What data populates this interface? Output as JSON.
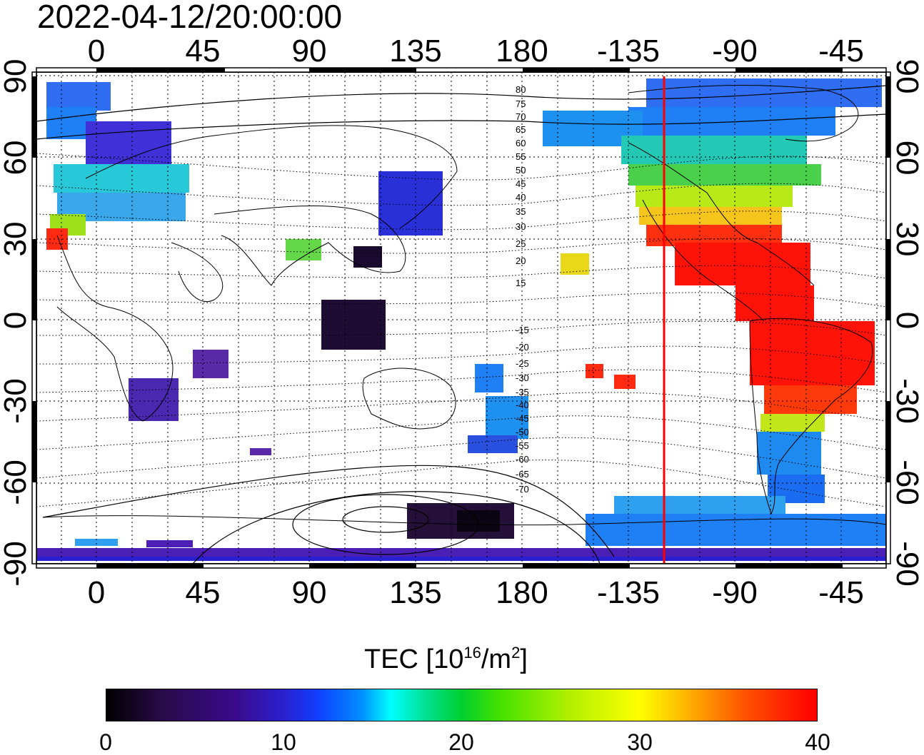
{
  "title": "2022-04-12/20:00:00",
  "map": {
    "lon_ticks": [
      "0",
      "45",
      "90",
      "135",
      "180",
      "-135",
      "-90",
      "-45"
    ],
    "lat_ticks": [
      "90",
      "60",
      "30",
      "0",
      "-30",
      "-60",
      "-90"
    ],
    "contour_labels_north": [
      "80",
      "75",
      "70",
      "65",
      "60",
      "55",
      "50",
      "45",
      "40",
      "35",
      "30",
      "25",
      "20",
      "15"
    ],
    "contour_labels_south": [
      "-15",
      "-20",
      "-25",
      "-30",
      "-35",
      "-40",
      "-45",
      "-50",
      "-55",
      "-60",
      "-65",
      "-70"
    ],
    "marker_line_color": "#ff0000"
  },
  "colorbar": {
    "title_main": "TEC  [10",
    "title_exp1": "16",
    "title_mid": "/m",
    "title_exp2": "2",
    "title_end": "]",
    "tick_labels": [
      "0",
      "10",
      "20",
      "30",
      "40"
    ],
    "range": [
      0,
      40
    ]
  }
}
